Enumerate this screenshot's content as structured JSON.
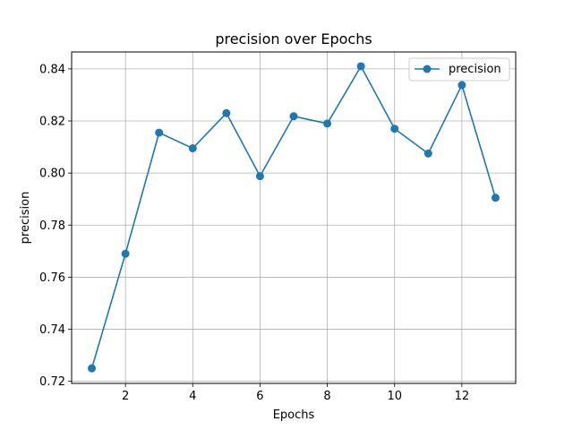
{
  "chart_data": {
    "type": "line",
    "title": "precision over Epochs",
    "xlabel": "Epochs",
    "ylabel": "precision",
    "xlim": [
      0.4,
      13.6
    ],
    "ylim": [
      0.7192,
      0.8465
    ],
    "xticks": [
      2,
      4,
      6,
      8,
      10,
      12
    ],
    "yticks": [
      0.72,
      0.74,
      0.76,
      0.78,
      0.8,
      0.82,
      0.84
    ],
    "ytick_labels": [
      "0.72",
      "0.74",
      "0.76",
      "0.78",
      "0.80",
      "0.82",
      "0.84"
    ],
    "grid": true,
    "legend_position": "top-right",
    "series": [
      {
        "name": "precision",
        "color": "#1f77b4",
        "marker": "circle",
        "x": [
          1,
          2,
          3,
          4,
          5,
          6,
          7,
          8,
          9,
          10,
          11,
          12,
          13
        ],
        "y": [
          0.725,
          0.769,
          0.8155,
          0.8095,
          0.823,
          0.7988,
          0.8218,
          0.819,
          0.841,
          0.817,
          0.8075,
          0.8338,
          0.7905
        ]
      }
    ]
  }
}
